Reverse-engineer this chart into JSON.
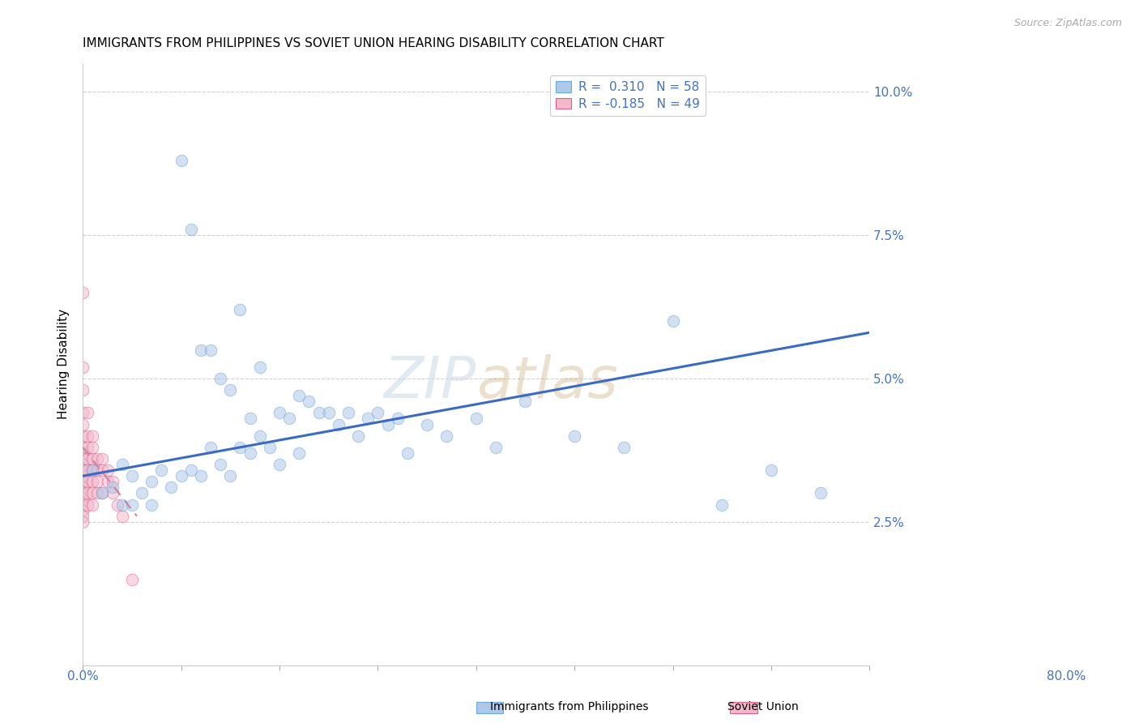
{
  "title": "IMMIGRANTS FROM PHILIPPINES VS SOVIET UNION HEARING DISABILITY CORRELATION CHART",
  "source": "Source: ZipAtlas.com",
  "ylabel": "Hearing Disability",
  "yticks": [
    0.0,
    0.025,
    0.05,
    0.075,
    0.1
  ],
  "ytick_labels": [
    "",
    "2.5%",
    "5.0%",
    "7.5%",
    "10.0%"
  ],
  "xlim": [
    0.0,
    0.8
  ],
  "ylim": [
    0.0,
    0.105
  ],
  "legend_r1": "R =  0.310",
  "legend_n1": "N = 58",
  "legend_r2": "R = -0.185",
  "legend_n2": "N = 49",
  "legend_label1": "Immigrants from Philippines",
  "legend_label2": "Soviet Union",
  "phil_color": "#adc8e8",
  "phil_edge_color": "#6fa8dc",
  "soviet_color": "#f4b8cc",
  "soviet_edge_color": "#e06090",
  "trend_phil_color": "#3a6bc4",
  "trend_soviet_color": "#d08098",
  "phil_scatter_x": [
    0.01,
    0.02,
    0.03,
    0.04,
    0.04,
    0.05,
    0.05,
    0.06,
    0.07,
    0.07,
    0.08,
    0.09,
    0.1,
    0.1,
    0.11,
    0.11,
    0.12,
    0.12,
    0.13,
    0.13,
    0.14,
    0.14,
    0.15,
    0.15,
    0.16,
    0.16,
    0.17,
    0.17,
    0.18,
    0.18,
    0.19,
    0.2,
    0.2,
    0.21,
    0.22,
    0.22,
    0.23,
    0.24,
    0.25,
    0.26,
    0.27,
    0.28,
    0.29,
    0.3,
    0.31,
    0.32,
    0.33,
    0.35,
    0.37,
    0.4,
    0.42,
    0.45,
    0.5,
    0.55,
    0.6,
    0.65,
    0.7,
    0.75
  ],
  "phil_scatter_y": [
    0.034,
    0.03,
    0.031,
    0.035,
    0.028,
    0.033,
    0.028,
    0.03,
    0.032,
    0.028,
    0.034,
    0.031,
    0.088,
    0.033,
    0.076,
    0.034,
    0.055,
    0.033,
    0.055,
    0.038,
    0.05,
    0.035,
    0.048,
    0.033,
    0.062,
    0.038,
    0.043,
    0.037,
    0.052,
    0.04,
    0.038,
    0.044,
    0.035,
    0.043,
    0.047,
    0.037,
    0.046,
    0.044,
    0.044,
    0.042,
    0.044,
    0.04,
    0.043,
    0.044,
    0.042,
    0.043,
    0.037,
    0.042,
    0.04,
    0.043,
    0.038,
    0.046,
    0.04,
    0.038,
    0.06,
    0.028,
    0.034,
    0.03
  ],
  "soviet_scatter_x": [
    0.0,
    0.0,
    0.0,
    0.0,
    0.0,
    0.0,
    0.0,
    0.0,
    0.0,
    0.0,
    0.0,
    0.0,
    0.0,
    0.0,
    0.0,
    0.0,
    0.0,
    0.0,
    0.0,
    0.0,
    0.005,
    0.005,
    0.005,
    0.005,
    0.005,
    0.005,
    0.005,
    0.005,
    0.01,
    0.01,
    0.01,
    0.01,
    0.01,
    0.01,
    0.01,
    0.015,
    0.015,
    0.015,
    0.015,
    0.02,
    0.02,
    0.02,
    0.025,
    0.025,
    0.03,
    0.03,
    0.035,
    0.04,
    0.05
  ],
  "soviet_scatter_y": [
    0.065,
    0.052,
    0.048,
    0.044,
    0.042,
    0.04,
    0.038,
    0.037,
    0.036,
    0.035,
    0.034,
    0.033,
    0.032,
    0.031,
    0.03,
    0.029,
    0.028,
    0.027,
    0.026,
    0.025,
    0.044,
    0.04,
    0.038,
    0.036,
    0.034,
    0.032,
    0.03,
    0.028,
    0.04,
    0.038,
    0.036,
    0.034,
    0.032,
    0.03,
    0.028,
    0.036,
    0.034,
    0.032,
    0.03,
    0.036,
    0.034,
    0.03,
    0.034,
    0.032,
    0.032,
    0.03,
    0.028,
    0.026,
    0.015
  ],
  "phil_trend_x": [
    0.0,
    0.8
  ],
  "phil_trend_y": [
    0.033,
    0.058
  ],
  "soviet_trend_x": [
    0.0,
    0.055
  ],
  "soviet_trend_y": [
    0.038,
    0.026
  ],
  "marker_size": 110,
  "marker_alpha": 0.55,
  "background_color": "#ffffff",
  "grid_color": "#cccccc",
  "title_fontsize": 11,
  "axis_label_color": "#4472c4",
  "watermark_color": "#d0dce8",
  "watermark_alpha": 0.6
}
